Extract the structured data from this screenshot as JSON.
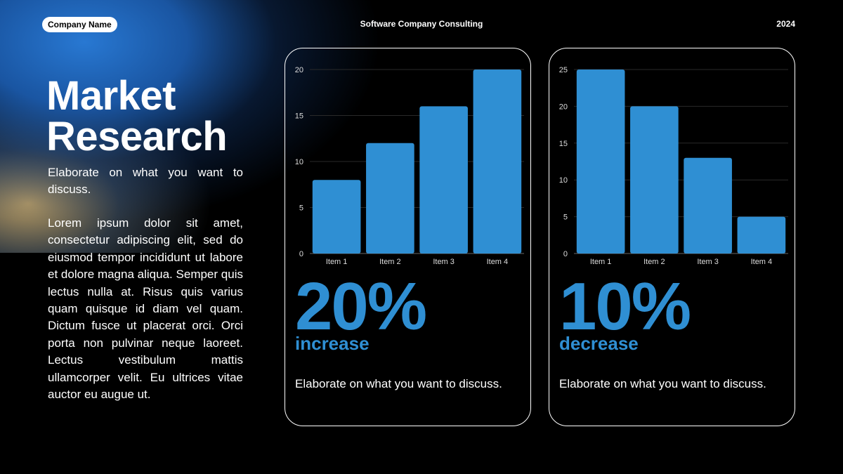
{
  "header": {
    "company": "Company Name",
    "center_title": "Software Company Consulting",
    "year": "2024"
  },
  "left": {
    "title": "Market Research",
    "subtitle": "Elaborate on what you want to discuss.",
    "body": "Lorem ipsum dolor sit amet, consectetur adipiscing elit, sed do eiusmod tempor incididunt ut labore et dolore magna aliqua. Semper quis lectus nulla at. Risus quis varius quam quisque id diam vel quam. Dictum fusce ut placerat orci. Orci porta non pulvinar neque laoreet. Lectus vestibulum mattis ullamcorper velit. Eu ultrices vitae auctor eu augue ut."
  },
  "cards": [
    {
      "percent": "20%",
      "word": "increase",
      "description": "Elaborate on what you want to discuss."
    },
    {
      "percent": "10%",
      "word": "decrease",
      "description": "Elaborate on what you want to discuss."
    }
  ],
  "colors": {
    "accent": "#2f8fd3",
    "background": "#000000",
    "text": "#ffffff"
  },
  "chart_data": [
    {
      "type": "bar",
      "categories": [
        "Item 1",
        "Item 2",
        "Item 3",
        "Item 4"
      ],
      "values": [
        8,
        12,
        16,
        20
      ],
      "yticks": [
        0,
        5,
        10,
        15,
        20
      ],
      "ylim": [
        0,
        20
      ],
      "grid": true
    },
    {
      "type": "bar",
      "categories": [
        "Item 1",
        "Item 2",
        "Item 3",
        "Item 4"
      ],
      "values": [
        25,
        20,
        13,
        5
      ],
      "yticks": [
        0,
        5,
        10,
        15,
        20,
        25
      ],
      "ylim": [
        0,
        25
      ],
      "grid": true
    }
  ]
}
